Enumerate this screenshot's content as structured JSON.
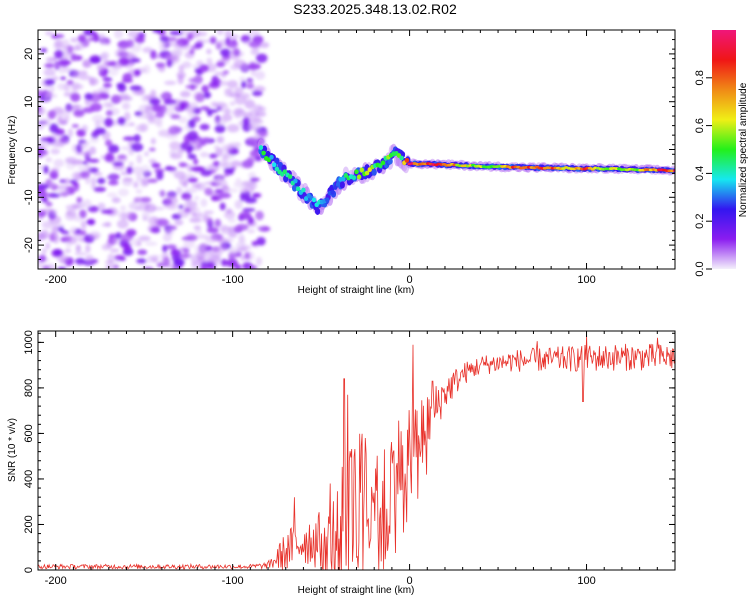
{
  "title": "S233.2025.348.13.02.R02",
  "colors": {
    "snr_line": "#e8312a",
    "background": "#ffffff",
    "colorbar_stops": [
      "#f4f0fb",
      "#8b1df0",
      "#3316f0",
      "#16e8f0",
      "#23f01a",
      "#f0ef16",
      "#f08a16",
      "#f01616",
      "#f0167a"
    ]
  },
  "chart_data": [
    {
      "type": "heatmap",
      "name": "spectrogram",
      "title": "",
      "xlabel": "Height of straight line (km)",
      "ylabel": "Frequency (Hz)",
      "xlim": [
        -210,
        150
      ],
      "ylim": [
        -25,
        25
      ],
      "x_ticks": [
        -200,
        -100,
        0,
        100
      ],
      "x_tick_labels": [
        "-200",
        "-100",
        "0",
        "100"
      ],
      "y_ticks": [
        -20,
        -10,
        0,
        10,
        20
      ],
      "y_tick_labels": [
        "-20",
        "-10",
        "0",
        "10",
        "20"
      ],
      "noise_region_x": [
        -210,
        -82
      ],
      "signal_track": {
        "x": [
          -84,
          -80,
          -76,
          -72,
          -68,
          -64,
          -60,
          -56,
          -52,
          -48,
          -44,
          -40,
          -36,
          -32,
          -28,
          -24,
          -20,
          -16,
          -12,
          -8,
          -4,
          0,
          10,
          20,
          30,
          40,
          50,
          60,
          70,
          80,
          90,
          100,
          110,
          120,
          130,
          140,
          150
        ],
        "y": [
          0,
          -1.5,
          -3,
          -4.5,
          -6,
          -7.5,
          -9,
          -10.5,
          -12,
          -11,
          -9,
          -7,
          -6,
          -5.5,
          -5,
          -4.5,
          -4,
          -3,
          -2,
          -1,
          -2,
          -3,
          -3,
          -3.2,
          -3.3,
          -3.5,
          -3.6,
          -3.7,
          -3.8,
          -3.8,
          -3.9,
          -4,
          -4,
          -4.1,
          -4.2,
          -4.3,
          -4.4
        ],
        "amp": [
          0.45,
          0.5,
          0.4,
          0.45,
          0.5,
          0.4,
          0.45,
          0.4,
          0.4,
          0.35,
          0.3,
          0.35,
          0.45,
          0.5,
          0.6,
          0.7,
          0.55,
          0.5,
          0.55,
          0.6,
          0.55,
          0.95,
          0.98,
          0.85,
          0.7,
          0.6,
          0.65,
          0.9,
          0.95,
          0.95,
          0.7,
          0.9,
          0.65,
          0.6,
          0.7,
          0.9,
          0.95
        ]
      },
      "colorbar": {
        "label": "Normalized spectral amplitude",
        "range": [
          0.0,
          1.0
        ],
        "ticks": [
          0.0,
          0.2,
          0.4,
          0.6,
          0.8
        ],
        "tick_labels": [
          "0.0",
          "0.2",
          "0.4",
          "0.6",
          "0.8"
        ]
      }
    },
    {
      "type": "line",
      "name": "snr",
      "title": "",
      "xlabel": "Height of straight line (km)",
      "ylabel": "SNR (10 * v/v)",
      "xlim": [
        -210,
        150
      ],
      "ylim": [
        0,
        1050
      ],
      "x_ticks": [
        -200,
        -100,
        0,
        100
      ],
      "x_tick_labels": [
        "-200",
        "-100",
        "0",
        "100"
      ],
      "y_ticks": [
        0,
        200,
        400,
        600,
        800,
        1000
      ],
      "y_tick_labels": [
        "0",
        "200",
        "400",
        "600",
        "800",
        "1000"
      ],
      "series": [
        {
          "name": "SNR",
          "envelope_x": [
            -210,
            -90,
            -80,
            -70,
            -60,
            -50,
            -40,
            -35,
            -30,
            -20,
            -10,
            0,
            10,
            20,
            30,
            40,
            50,
            60,
            80,
            100,
            120,
            150
          ],
          "envelope_y": [
            15,
            15,
            20,
            80,
            130,
            130,
            150,
            300,
            350,
            380,
            420,
            550,
            650,
            780,
            860,
            900,
            910,
            920,
            925,
            930,
            935,
            935
          ],
          "noise_amplitude": [
            10,
            10,
            15,
            90,
            110,
            130,
            220,
            300,
            280,
            260,
            230,
            200,
            130,
            80,
            50,
            45,
            45,
            50,
            55,
            60,
            60,
            60
          ],
          "spikes": [
            [
              -65,
              320
            ],
            [
              -45,
              380
            ],
            [
              -37,
              840
            ],
            [
              -35,
              770
            ],
            [
              -25,
              580
            ],
            [
              2,
              990
            ],
            [
              13,
              830
            ],
            [
              72,
              1005
            ],
            [
              100,
              1030
            ],
            [
              98,
              740
            ],
            [
              140,
              1020
            ]
          ]
        }
      ]
    }
  ]
}
